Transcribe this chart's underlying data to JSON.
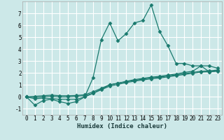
{
  "title": "",
  "xlabel": "Humidex (Indice chaleur)",
  "ylabel": "",
  "background_color": "#cce8e8",
  "grid_color": "#ffffff",
  "line_color": "#1a7a6e",
  "xlim": [
    -0.5,
    23.5
  ],
  "ylim": [
    -1.5,
    8.0
  ],
  "xticks": [
    0,
    1,
    2,
    3,
    4,
    5,
    6,
    7,
    8,
    9,
    10,
    11,
    12,
    13,
    14,
    15,
    16,
    17,
    18,
    19,
    20,
    21,
    22,
    23
  ],
  "yticks": [
    -1,
    0,
    1,
    2,
    3,
    4,
    5,
    6,
    7
  ],
  "series": [
    [
      0.0,
      -0.7,
      -0.3,
      -0.2,
      -0.4,
      -0.55,
      -0.4,
      0.0,
      1.6,
      4.8,
      6.2,
      4.7,
      5.3,
      6.2,
      6.4,
      7.7,
      5.5,
      4.3,
      2.8,
      2.8,
      2.6,
      2.6,
      2.1,
      2.2
    ],
    [
      0.0,
      -0.15,
      -0.1,
      -0.15,
      -0.2,
      -0.2,
      -0.2,
      0.0,
      0.3,
      0.65,
      1.0,
      1.15,
      1.3,
      1.45,
      1.55,
      1.65,
      1.72,
      1.82,
      1.92,
      2.05,
      2.15,
      2.6,
      2.6,
      2.4
    ],
    [
      0.0,
      -0.05,
      0.0,
      0.05,
      0.0,
      0.0,
      0.05,
      0.1,
      0.3,
      0.6,
      0.9,
      1.05,
      1.2,
      1.32,
      1.42,
      1.52,
      1.58,
      1.68,
      1.78,
      1.88,
      1.98,
      2.08,
      2.1,
      2.15
    ],
    [
      0.0,
      0.05,
      0.1,
      0.15,
      0.1,
      0.1,
      0.12,
      0.18,
      0.42,
      0.72,
      1.02,
      1.15,
      1.28,
      1.38,
      1.5,
      1.6,
      1.65,
      1.75,
      1.85,
      1.95,
      2.05,
      2.15,
      2.18,
      2.25
    ]
  ],
  "marker": "D",
  "marker_size": 2.5,
  "linewidth": 0.9,
  "xlabel_fontsize": 6.5,
  "tick_fontsize": 5.5
}
